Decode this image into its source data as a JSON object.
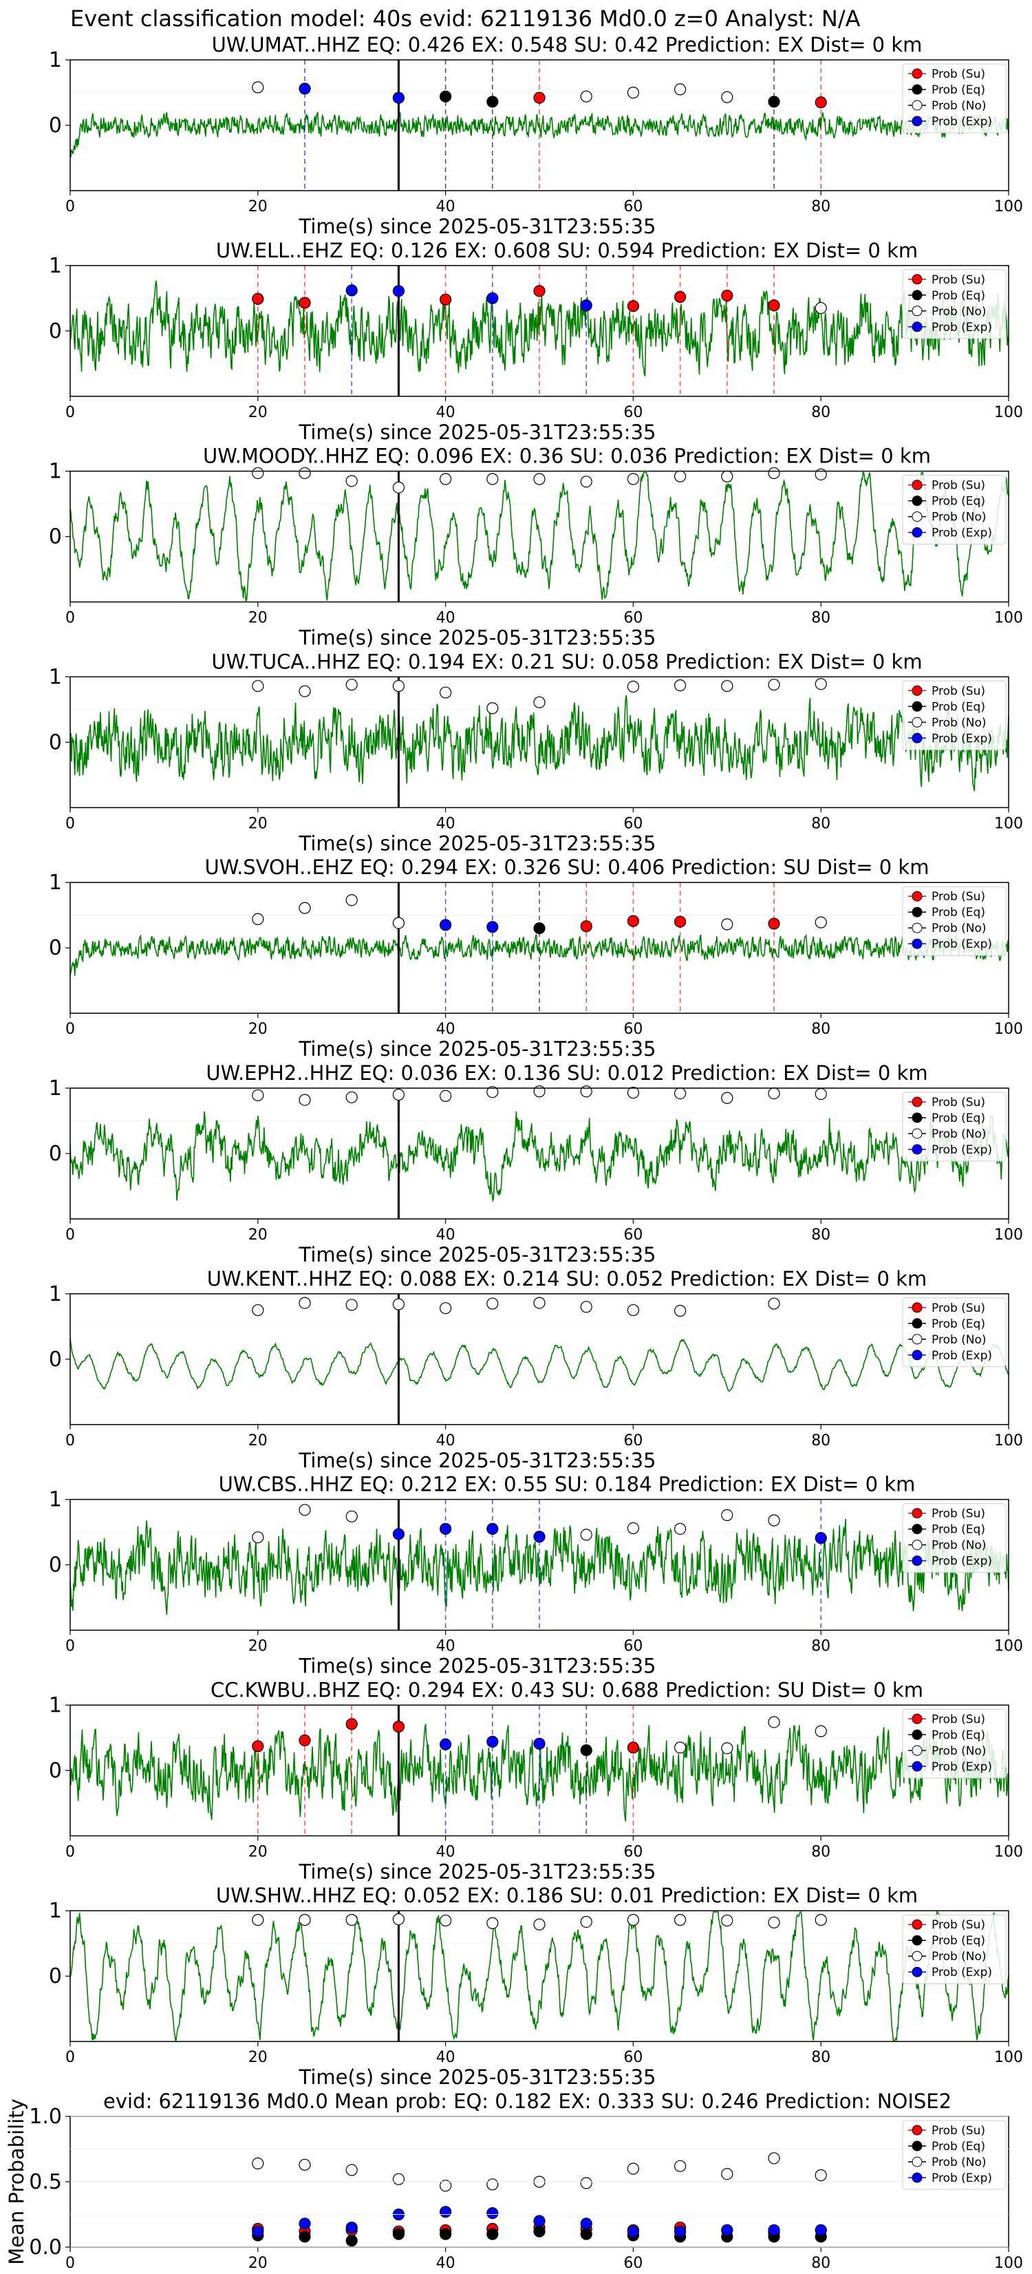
{
  "page_title": "Event classification model: 40s evid: 62119136 Md0.0 z=0 Analyst: N/A",
  "colors": {
    "trace": "#008000",
    "prob_su": "#ff0000",
    "prob_eq": "#000000",
    "prob_no": "#ffffff",
    "prob_exp": "#0000ff",
    "pick_line": "#000000",
    "su_line": "#ff0000",
    "eq_line": "#000000",
    "exp_line": "#0000ff"
  },
  "legend": [
    "Prob (Su)",
    "Prob (Eq)",
    "Prob (No)",
    "Prob (Exp)"
  ],
  "xlabel": "Time(s) since 2025-05-31T23:55:35",
  "chart_data": [
    {
      "type": "line",
      "title": "UW.UMAT..HHZ   EQ: 0.426  EX: 0.548  SU: 0.42   Prediction: EX    Dist= 0 km",
      "xlim": [
        0,
        100
      ],
      "ylim": [
        -1,
        1
      ],
      "xticks": [
        "0",
        "20",
        "40",
        "60",
        "80",
        "100"
      ],
      "yticks": [
        "0",
        "1"
      ],
      "trace_style": "noisy-small",
      "pick_time": 35,
      "markers": [
        {
          "x": 20,
          "y": 0.58,
          "cls": "No"
        },
        {
          "x": 25,
          "y": 0.56,
          "cls": "Exp"
        },
        {
          "x": 35,
          "y": 0.42,
          "cls": "Exp"
        },
        {
          "x": 40,
          "y": 0.44,
          "cls": "Eq"
        },
        {
          "x": 45,
          "y": 0.36,
          "cls": "Eq"
        },
        {
          "x": 50,
          "y": 0.42,
          "cls": "Su"
        },
        {
          "x": 55,
          "y": 0.44,
          "cls": "No"
        },
        {
          "x": 60,
          "y": 0.5,
          "cls": "No"
        },
        {
          "x": 65,
          "y": 0.55,
          "cls": "No"
        },
        {
          "x": 70,
          "y": 0.43,
          "cls": "No"
        },
        {
          "x": 75,
          "y": 0.36,
          "cls": "Eq"
        },
        {
          "x": 80,
          "y": 0.35,
          "cls": "Su"
        }
      ]
    },
    {
      "type": "line",
      "title": "UW.ELL..EHZ   EQ: 0.126  EX: 0.608  SU: 0.594   Prediction: EX    Dist= 0 km",
      "xlim": [
        0,
        100
      ],
      "ylim": [
        -1,
        1
      ],
      "xticks": [
        "0",
        "20",
        "40",
        "60",
        "80",
        "100"
      ],
      "yticks": [
        "0",
        "1"
      ],
      "trace_style": "noisy-large",
      "pick_time": 35,
      "markers": [
        {
          "x": 20,
          "y": 0.49,
          "cls": "Su"
        },
        {
          "x": 25,
          "y": 0.43,
          "cls": "Su"
        },
        {
          "x": 30,
          "y": 0.62,
          "cls": "Exp"
        },
        {
          "x": 35,
          "y": 0.61,
          "cls": "Exp"
        },
        {
          "x": 40,
          "y": 0.48,
          "cls": "Su"
        },
        {
          "x": 45,
          "y": 0.5,
          "cls": "Exp"
        },
        {
          "x": 50,
          "y": 0.61,
          "cls": "Su"
        },
        {
          "x": 55,
          "y": 0.39,
          "cls": "Exp"
        },
        {
          "x": 60,
          "y": 0.38,
          "cls": "Su"
        },
        {
          "x": 65,
          "y": 0.52,
          "cls": "Su"
        },
        {
          "x": 70,
          "y": 0.54,
          "cls": "Su"
        },
        {
          "x": 75,
          "y": 0.39,
          "cls": "Su"
        },
        {
          "x": 80,
          "y": 0.35,
          "cls": "No"
        }
      ]
    },
    {
      "type": "line",
      "title": "UW.MOODY..HHZ   EQ: 0.096  EX: 0.36  SU: 0.036   Prediction: EX    Dist= 0 km",
      "xlim": [
        0,
        100
      ],
      "ylim": [
        -1,
        1
      ],
      "xticks": [
        "0",
        "20",
        "40",
        "60",
        "80",
        "100"
      ],
      "yticks": [
        "0",
        "1"
      ],
      "trace_style": "smooth-large",
      "pick_time": 35,
      "markers": [
        {
          "x": 20,
          "y": 0.97,
          "cls": "No"
        },
        {
          "x": 25,
          "y": 0.97,
          "cls": "No"
        },
        {
          "x": 30,
          "y": 0.85,
          "cls": "No"
        },
        {
          "x": 35,
          "y": 0.75,
          "cls": "No"
        },
        {
          "x": 40,
          "y": 0.88,
          "cls": "No"
        },
        {
          "x": 45,
          "y": 0.88,
          "cls": "No"
        },
        {
          "x": 50,
          "y": 0.88,
          "cls": "No"
        },
        {
          "x": 55,
          "y": 0.84,
          "cls": "No"
        },
        {
          "x": 60,
          "y": 0.88,
          "cls": "No"
        },
        {
          "x": 65,
          "y": 0.92,
          "cls": "No"
        },
        {
          "x": 70,
          "y": 0.92,
          "cls": "No"
        },
        {
          "x": 75,
          "y": 0.97,
          "cls": "No"
        },
        {
          "x": 80,
          "y": 0.95,
          "cls": "No"
        }
      ]
    },
    {
      "type": "line",
      "title": "UW.TUCA..HHZ   EQ: 0.194  EX: 0.21  SU: 0.058   Prediction: EX    Dist= 0 km",
      "xlim": [
        0,
        100
      ],
      "ylim": [
        -1,
        1
      ],
      "xticks": [
        "0",
        "20",
        "40",
        "60",
        "80",
        "100"
      ],
      "yticks": [
        "0",
        "1"
      ],
      "trace_style": "noisy-large",
      "pick_time": 35,
      "markers": [
        {
          "x": 20,
          "y": 0.86,
          "cls": "No"
        },
        {
          "x": 25,
          "y": 0.78,
          "cls": "No"
        },
        {
          "x": 30,
          "y": 0.88,
          "cls": "No"
        },
        {
          "x": 35,
          "y": 0.86,
          "cls": "No"
        },
        {
          "x": 40,
          "y": 0.76,
          "cls": "No"
        },
        {
          "x": 45,
          "y": 0.52,
          "cls": "No"
        },
        {
          "x": 50,
          "y": 0.61,
          "cls": "No"
        },
        {
          "x": 60,
          "y": 0.85,
          "cls": "No"
        },
        {
          "x": 65,
          "y": 0.87,
          "cls": "No"
        },
        {
          "x": 70,
          "y": 0.86,
          "cls": "No"
        },
        {
          "x": 75,
          "y": 0.88,
          "cls": "No"
        },
        {
          "x": 80,
          "y": 0.89,
          "cls": "No"
        }
      ]
    },
    {
      "type": "line",
      "title": "UW.SVOH..EHZ   EQ: 0.294  EX: 0.326  SU: 0.406   Prediction: SU    Dist= 0 km",
      "xlim": [
        0,
        100
      ],
      "ylim": [
        -1,
        1
      ],
      "xticks": [
        "0",
        "20",
        "40",
        "60",
        "80",
        "100"
      ],
      "yticks": [
        "0",
        "1"
      ],
      "trace_style": "noisy-small",
      "pick_time": 35,
      "markers": [
        {
          "x": 20,
          "y": 0.44,
          "cls": "No"
        },
        {
          "x": 25,
          "y": 0.61,
          "cls": "No"
        },
        {
          "x": 30,
          "y": 0.73,
          "cls": "No"
        },
        {
          "x": 35,
          "y": 0.38,
          "cls": "No"
        },
        {
          "x": 40,
          "y": 0.35,
          "cls": "Exp"
        },
        {
          "x": 45,
          "y": 0.32,
          "cls": "Exp"
        },
        {
          "x": 50,
          "y": 0.3,
          "cls": "Eq"
        },
        {
          "x": 55,
          "y": 0.33,
          "cls": "Su"
        },
        {
          "x": 60,
          "y": 0.41,
          "cls": "Su"
        },
        {
          "x": 65,
          "y": 0.4,
          "cls": "Su"
        },
        {
          "x": 70,
          "y": 0.36,
          "cls": "No"
        },
        {
          "x": 75,
          "y": 0.37,
          "cls": "Su"
        },
        {
          "x": 80,
          "y": 0.39,
          "cls": "No"
        }
      ]
    },
    {
      "type": "line",
      "title": "UW.EPH2..HHZ   EQ: 0.036  EX: 0.136  SU: 0.012   Prediction: EX    Dist= 0 km",
      "xlim": [
        0,
        100
      ],
      "ylim": [
        -1,
        1
      ],
      "xticks": [
        "0",
        "20",
        "40",
        "60",
        "80",
        "100"
      ],
      "yticks": [
        "0",
        "1"
      ],
      "trace_style": "noisy-medium",
      "pick_time": 35,
      "markers": [
        {
          "x": 20,
          "y": 0.89,
          "cls": "No"
        },
        {
          "x": 25,
          "y": 0.82,
          "cls": "No"
        },
        {
          "x": 30,
          "y": 0.86,
          "cls": "No"
        },
        {
          "x": 35,
          "y": 0.9,
          "cls": "No"
        },
        {
          "x": 40,
          "y": 0.88,
          "cls": "No"
        },
        {
          "x": 45,
          "y": 0.94,
          "cls": "No"
        },
        {
          "x": 50,
          "y": 0.95,
          "cls": "No"
        },
        {
          "x": 55,
          "y": 0.95,
          "cls": "No"
        },
        {
          "x": 60,
          "y": 0.93,
          "cls": "No"
        },
        {
          "x": 65,
          "y": 0.92,
          "cls": "No"
        },
        {
          "x": 70,
          "y": 0.85,
          "cls": "No"
        },
        {
          "x": 75,
          "y": 0.92,
          "cls": "No"
        },
        {
          "x": 80,
          "y": 0.91,
          "cls": "No"
        }
      ]
    },
    {
      "type": "line",
      "title": "UW.KENT..HHZ   EQ: 0.088  EX: 0.214  SU: 0.052   Prediction: EX    Dist= 0 km",
      "xlim": [
        0,
        100
      ],
      "ylim": [
        -1,
        1
      ],
      "xticks": [
        "0",
        "20",
        "40",
        "60",
        "80",
        "100"
      ],
      "yticks": [
        "0",
        "1"
      ],
      "trace_style": "smooth-small",
      "pick_time": 35,
      "markers": [
        {
          "x": 20,
          "y": 0.75,
          "cls": "No"
        },
        {
          "x": 25,
          "y": 0.86,
          "cls": "No"
        },
        {
          "x": 30,
          "y": 0.83,
          "cls": "No"
        },
        {
          "x": 35,
          "y": 0.84,
          "cls": "No"
        },
        {
          "x": 40,
          "y": 0.78,
          "cls": "No"
        },
        {
          "x": 45,
          "y": 0.85,
          "cls": "No"
        },
        {
          "x": 50,
          "y": 0.86,
          "cls": "No"
        },
        {
          "x": 55,
          "y": 0.8,
          "cls": "No"
        },
        {
          "x": 60,
          "y": 0.75,
          "cls": "No"
        },
        {
          "x": 65,
          "y": 0.74,
          "cls": "No"
        },
        {
          "x": 75,
          "y": 0.85,
          "cls": "No"
        }
      ]
    },
    {
      "type": "line",
      "title": "UW.CBS..HHZ   EQ: 0.212  EX: 0.55  SU: 0.184   Prediction: EX    Dist= 0 km",
      "xlim": [
        0,
        100
      ],
      "ylim": [
        -1,
        1
      ],
      "xticks": [
        "0",
        "20",
        "40",
        "60",
        "80",
        "100"
      ],
      "yticks": [
        "0",
        "1"
      ],
      "trace_style": "noisy-large",
      "pick_time": 35,
      "markers": [
        {
          "x": 20,
          "y": 0.42,
          "cls": "No"
        },
        {
          "x": 25,
          "y": 0.84,
          "cls": "No"
        },
        {
          "x": 30,
          "y": 0.74,
          "cls": "No"
        },
        {
          "x": 35,
          "y": 0.47,
          "cls": "Exp"
        },
        {
          "x": 40,
          "y": 0.55,
          "cls": "Exp"
        },
        {
          "x": 45,
          "y": 0.55,
          "cls": "Exp"
        },
        {
          "x": 50,
          "y": 0.43,
          "cls": "Exp"
        },
        {
          "x": 55,
          "y": 0.46,
          "cls": "No"
        },
        {
          "x": 60,
          "y": 0.56,
          "cls": "No"
        },
        {
          "x": 65,
          "y": 0.55,
          "cls": "No"
        },
        {
          "x": 70,
          "y": 0.76,
          "cls": "No"
        },
        {
          "x": 75,
          "y": 0.68,
          "cls": "No"
        },
        {
          "x": 80,
          "y": 0.41,
          "cls": "Exp"
        }
      ]
    },
    {
      "type": "line",
      "title": "CC.KWBU..BHZ   EQ: 0.294  EX: 0.43  SU: 0.688   Prediction: SU    Dist= 0 km",
      "xlim": [
        0,
        100
      ],
      "ylim": [
        -1,
        1
      ],
      "xticks": [
        "0",
        "20",
        "40",
        "60",
        "80",
        "100"
      ],
      "yticks": [
        "0",
        "1"
      ],
      "trace_style": "noisy-large",
      "pick_time": 35,
      "markers": [
        {
          "x": 20,
          "y": 0.37,
          "cls": "Su"
        },
        {
          "x": 25,
          "y": 0.46,
          "cls": "Su"
        },
        {
          "x": 30,
          "y": 0.71,
          "cls": "Su"
        },
        {
          "x": 35,
          "y": 0.67,
          "cls": "Su"
        },
        {
          "x": 40,
          "y": 0.4,
          "cls": "Exp"
        },
        {
          "x": 45,
          "y": 0.44,
          "cls": "Exp"
        },
        {
          "x": 50,
          "y": 0.41,
          "cls": "Exp"
        },
        {
          "x": 55,
          "y": 0.31,
          "cls": "Eq"
        },
        {
          "x": 60,
          "y": 0.35,
          "cls": "Su"
        },
        {
          "x": 65,
          "y": 0.35,
          "cls": "No"
        },
        {
          "x": 70,
          "y": 0.34,
          "cls": "No"
        },
        {
          "x": 75,
          "y": 0.74,
          "cls": "No"
        },
        {
          "x": 80,
          "y": 0.6,
          "cls": "No"
        }
      ]
    },
    {
      "type": "line",
      "title": "UW.SHW..HHZ   EQ: 0.052  EX: 0.186  SU: 0.01   Prediction: EX    Dist= 0 km",
      "xlim": [
        0,
        100
      ],
      "ylim": [
        -1,
        1
      ],
      "xticks": [
        "0",
        "20",
        "40",
        "60",
        "80",
        "100"
      ],
      "yticks": [
        "0",
        "1"
      ],
      "trace_style": "smooth-large",
      "pick_time": 35,
      "markers": [
        {
          "x": 20,
          "y": 0.86,
          "cls": "No"
        },
        {
          "x": 25,
          "y": 0.86,
          "cls": "No"
        },
        {
          "x": 30,
          "y": 0.86,
          "cls": "No"
        },
        {
          "x": 35,
          "y": 0.87,
          "cls": "No"
        },
        {
          "x": 40,
          "y": 0.85,
          "cls": "No"
        },
        {
          "x": 45,
          "y": 0.81,
          "cls": "No"
        },
        {
          "x": 50,
          "y": 0.79,
          "cls": "No"
        },
        {
          "x": 55,
          "y": 0.83,
          "cls": "No"
        },
        {
          "x": 60,
          "y": 0.86,
          "cls": "No"
        },
        {
          "x": 65,
          "y": 0.86,
          "cls": "No"
        },
        {
          "x": 70,
          "y": 0.85,
          "cls": "No"
        },
        {
          "x": 75,
          "y": 0.82,
          "cls": "No"
        },
        {
          "x": 80,
          "y": 0.86,
          "cls": "No"
        }
      ]
    },
    {
      "type": "scatter",
      "title": "evid: 62119136  Md0.0   Mean prob:   EQ: 0.182  EX: 0.333  SU: 0.246   Prediction: NOISE2",
      "xlim": [
        0,
        100
      ],
      "ylim": [
        0,
        1
      ],
      "xticks": [
        "0",
        "20",
        "40",
        "60",
        "80",
        "100"
      ],
      "yticks": [
        "0.0",
        "0.5",
        "1.0"
      ],
      "ylabel": "Mean Probability",
      "x": [
        20,
        25,
        30,
        35,
        40,
        45,
        50,
        55,
        60,
        65,
        70,
        75,
        80
      ],
      "series": [
        {
          "name": "Prob (Su)",
          "cls": "Su",
          "values": [
            0.14,
            0.12,
            0.13,
            0.12,
            0.13,
            0.14,
            0.15,
            0.14,
            0.13,
            0.15,
            0.13,
            0.11,
            0.13
          ]
        },
        {
          "name": "Prob (Eq)",
          "cls": "Eq",
          "values": [
            0.09,
            0.08,
            0.05,
            0.1,
            0.1,
            0.1,
            0.12,
            0.1,
            0.09,
            0.08,
            0.08,
            0.08,
            0.08
          ]
        },
        {
          "name": "Prob (No)",
          "cls": "No",
          "values": [
            0.64,
            0.63,
            0.59,
            0.52,
            0.47,
            0.48,
            0.5,
            0.49,
            0.6,
            0.62,
            0.56,
            0.68,
            0.55
          ]
        },
        {
          "name": "Prob (Exp)",
          "cls": "Exp",
          "values": [
            0.12,
            0.18,
            0.15,
            0.25,
            0.27,
            0.26,
            0.2,
            0.18,
            0.12,
            0.12,
            0.13,
            0.13,
            0.13
          ]
        }
      ]
    }
  ]
}
